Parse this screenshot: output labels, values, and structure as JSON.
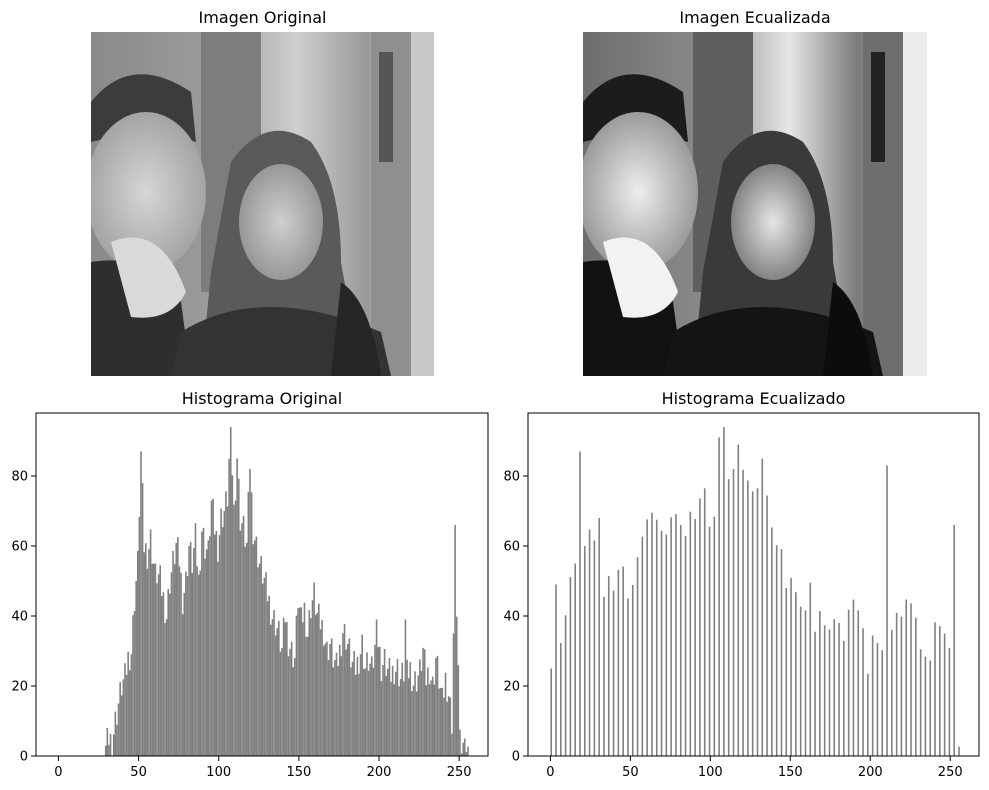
{
  "panels": {
    "image_original_title": "Imagen Original",
    "image_equalized_title": "Imagen Ecualizada",
    "image_subject": "grayscale-photo-two-people",
    "colors": {
      "bars": "#808080",
      "axes": "#000000",
      "background": "#ffffff"
    }
  },
  "chart_data": [
    {
      "type": "bar",
      "title": "Histograma Original",
      "xlabel": "",
      "ylabel": "",
      "xlim": [
        -14,
        268
      ],
      "ylim": [
        0,
        98
      ],
      "xticks": [
        0,
        50,
        100,
        150,
        200,
        250
      ],
      "yticks": [
        0,
        20,
        40,
        60,
        80
      ],
      "grid": false,
      "bins": 256,
      "anchors": [
        [
          0,
          0
        ],
        [
          28,
          0
        ],
        [
          29,
          2
        ],
        [
          31,
          5
        ],
        [
          33,
          4
        ],
        [
          35,
          10
        ],
        [
          37,
          15
        ],
        [
          39,
          20
        ],
        [
          41,
          22
        ],
        [
          43,
          28
        ],
        [
          45,
          30
        ],
        [
          47,
          45
        ],
        [
          49,
          55
        ],
        [
          51,
          87
        ],
        [
          53,
          60
        ],
        [
          55,
          58
        ],
        [
          57,
          62
        ],
        [
          59,
          55
        ],
        [
          61,
          52
        ],
        [
          63,
          50
        ],
        [
          65,
          45
        ],
        [
          67,
          40
        ],
        [
          69,
          50
        ],
        [
          71,
          55
        ],
        [
          73,
          60
        ],
        [
          75,
          56
        ],
        [
          77,
          45
        ],
        [
          79,
          50
        ],
        [
          81,
          60
        ],
        [
          83,
          55
        ],
        [
          85,
          62
        ],
        [
          87,
          50
        ],
        [
          89,
          65
        ],
        [
          91,
          60
        ],
        [
          93,
          58
        ],
        [
          95,
          73
        ],
        [
          97,
          65
        ],
        [
          99,
          60
        ],
        [
          101,
          68
        ],
        [
          103,
          70
        ],
        [
          105,
          74
        ],
        [
          107,
          94
        ],
        [
          109,
          70
        ],
        [
          111,
          85
        ],
        [
          113,
          68
        ],
        [
          115,
          65
        ],
        [
          117,
          60
        ],
        [
          119,
          82
        ],
        [
          121,
          65
        ],
        [
          123,
          60
        ],
        [
          125,
          55
        ],
        [
          127,
          52
        ],
        [
          129,
          48
        ],
        [
          131,
          44
        ],
        [
          133,
          40
        ],
        [
          135,
          38
        ],
        [
          137,
          35
        ],
        [
          139,
          30
        ],
        [
          141,
          40
        ],
        [
          143,
          33
        ],
        [
          145,
          30
        ],
        [
          147,
          28
        ],
        [
          149,
          45
        ],
        [
          151,
          38
        ],
        [
          153,
          42
        ],
        [
          155,
          35
        ],
        [
          157,
          43
        ],
        [
          159,
          46
        ],
        [
          161,
          40
        ],
        [
          163,
          38
        ],
        [
          165,
          36
        ],
        [
          167,
          30
        ],
        [
          169,
          32
        ],
        [
          171,
          28
        ],
        [
          173,
          25
        ],
        [
          175,
          30
        ],
        [
          177,
          36
        ],
        [
          179,
          34
        ],
        [
          181,
          30
        ],
        [
          183,
          26
        ],
        [
          185,
          25
        ],
        [
          187,
          28
        ],
        [
          189,
          32
        ],
        [
          191,
          25
        ],
        [
          193,
          27
        ],
        [
          195,
          24
        ],
        [
          197,
          30
        ],
        [
          199,
          32
        ],
        [
          201,
          25
        ],
        [
          203,
          27
        ],
        [
          205,
          24
        ],
        [
          207,
          23
        ],
        [
          209,
          25
        ],
        [
          211,
          25
        ],
        [
          213,
          22
        ],
        [
          215,
          24
        ],
        [
          217,
          23
        ],
        [
          219,
          25
        ],
        [
          221,
          21
        ],
        [
          223,
          22
        ],
        [
          225,
          24
        ],
        [
          227,
          30
        ],
        [
          229,
          22
        ],
        [
          231,
          25
        ],
        [
          233,
          20
        ],
        [
          235,
          28
        ],
        [
          237,
          22
        ],
        [
          239,
          15
        ],
        [
          241,
          22
        ],
        [
          243,
          18
        ],
        [
          245,
          10
        ],
        [
          247,
          60
        ],
        [
          249,
          25
        ],
        [
          250,
          3
        ],
        [
          252,
          2
        ],
        [
          253,
          4
        ],
        [
          255,
          0
        ]
      ],
      "spikes": [
        [
          51,
          87
        ],
        [
          60,
          55
        ],
        [
          95,
          73
        ],
        [
          107,
          94
        ],
        [
          111,
          85
        ],
        [
          119,
          82
        ],
        [
          198,
          39
        ],
        [
          216,
          39
        ],
        [
          247,
          66
        ],
        [
          253,
          5
        ]
      ]
    },
    {
      "type": "bar",
      "title": "Histograma Ecualizado",
      "xlabel": "",
      "ylabel": "",
      "xlim": [
        -14,
        268
      ],
      "ylim": [
        0,
        98
      ],
      "xticks": [
        0,
        50,
        100,
        150,
        200,
        250
      ],
      "yticks": [
        0,
        20,
        40,
        60,
        80
      ],
      "grid": false,
      "bins": 256,
      "anchors": [
        [
          0,
          25
        ],
        [
          3,
          49
        ],
        [
          6,
          35
        ],
        [
          9,
          42
        ],
        [
          12,
          52
        ],
        [
          15,
          55
        ],
        [
          18,
          62
        ],
        [
          21,
          60
        ],
        [
          24,
          62
        ],
        [
          27,
          58
        ],
        [
          30,
          60
        ],
        [
          33,
          50
        ],
        [
          36,
          55
        ],
        [
          39,
          50
        ],
        [
          42,
          55
        ],
        [
          45,
          55
        ],
        [
          48,
          45
        ],
        [
          51,
          48
        ],
        [
          54,
          55
        ],
        [
          57,
          60
        ],
        [
          60,
          64
        ],
        [
          63,
          65
        ],
        [
          66,
          72
        ],
        [
          69,
          68
        ],
        [
          72,
          66
        ],
        [
          75,
          70
        ],
        [
          78,
          70
        ],
        [
          81,
          66
        ],
        [
          84,
          62
        ],
        [
          87,
          68
        ],
        [
          90,
          65
        ],
        [
          93,
          70
        ],
        [
          96,
          72
        ],
        [
          99,
          70
        ],
        [
          102,
          72
        ],
        [
          105,
          80
        ],
        [
          108,
          88
        ],
        [
          111,
          80
        ],
        [
          114,
          82
        ],
        [
          117,
          76
        ],
        [
          120,
          80
        ],
        [
          123,
          76
        ],
        [
          126,
          72
        ],
        [
          129,
          72
        ],
        [
          132,
          80
        ],
        [
          135,
          78
        ],
        [
          138,
          68
        ],
        [
          141,
          62
        ],
        [
          144,
          60
        ],
        [
          147,
          48
        ],
        [
          150,
          50
        ],
        [
          153,
          45
        ],
        [
          156,
          40
        ],
        [
          159,
          38
        ],
        [
          162,
          45
        ],
        [
          165,
          40
        ],
        [
          168,
          45
        ],
        [
          171,
          40
        ],
        [
          174,
          38
        ],
        [
          177,
          40
        ],
        [
          180,
          38
        ],
        [
          183,
          32
        ],
        [
          186,
          40
        ],
        [
          189,
          42
        ],
        [
          192,
          38
        ],
        [
          195,
          32
        ],
        [
          198,
          28
        ],
        [
          201,
          38
        ],
        [
          204,
          35
        ],
        [
          207,
          32
        ],
        [
          210,
          30
        ],
        [
          213,
          36
        ],
        [
          216,
          40
        ],
        [
          219,
          38
        ],
        [
          222,
          42
        ],
        [
          225,
          40
        ],
        [
          228,
          35
        ],
        [
          231,
          35
        ],
        [
          234,
          32
        ],
        [
          237,
          30
        ],
        [
          240,
          40
        ],
        [
          243,
          38
        ],
        [
          246,
          35
        ],
        [
          249,
          30
        ],
        [
          251,
          25
        ],
        [
          253,
          1
        ],
        [
          255,
          0
        ]
      ],
      "spikes": [
        [
          0,
          25
        ],
        [
          3,
          49
        ],
        [
          18,
          87
        ],
        [
          21,
          60
        ],
        [
          30,
          68
        ],
        [
          105,
          91
        ],
        [
          108,
          94
        ],
        [
          117,
          89
        ],
        [
          132,
          85
        ],
        [
          210,
          83
        ],
        [
          252,
          66
        ]
      ],
      "gap_every": 3
    }
  ]
}
